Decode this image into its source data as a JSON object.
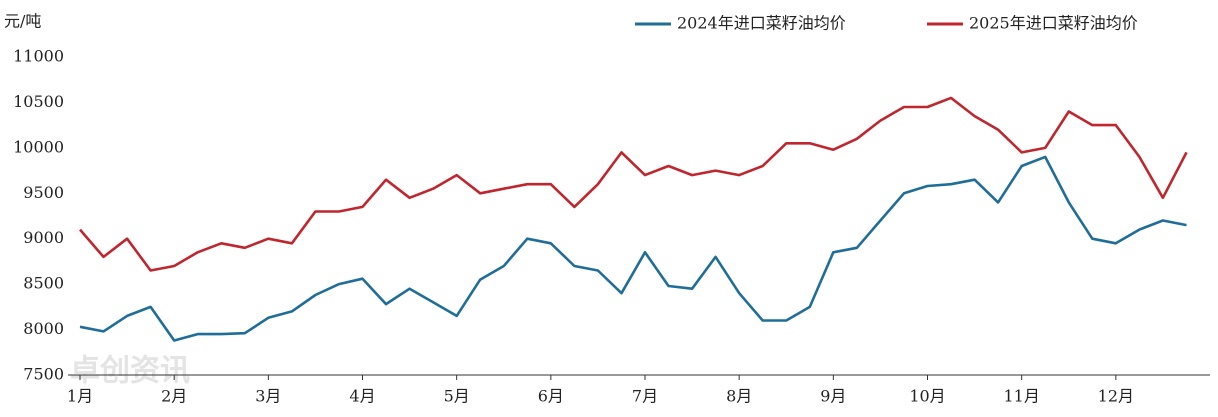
{
  "chart_data": {
    "type": "line",
    "y_label": "元/吨",
    "watermark": "卓创资讯",
    "categories": [
      "1月",
      null,
      null,
      null,
      "2月",
      null,
      null,
      null,
      "3月",
      null,
      null,
      null,
      "4月",
      null,
      null,
      null,
      "5月",
      null,
      null,
      null,
      "6月",
      null,
      null,
      null,
      "7月",
      null,
      null,
      null,
      "8月",
      null,
      null,
      null,
      "9月",
      null,
      null,
      null,
      "10月",
      null,
      null,
      null,
      "11月",
      null,
      null,
      null,
      "12月",
      null,
      null,
      null
    ],
    "series": [
      {
        "name": "2024年进口菜籽油均价",
        "color": "#1f6e9a",
        "values": [
          8030,
          7980,
          8150,
          8250,
          7880,
          7950,
          7950,
          7960,
          8130,
          8200,
          8380,
          8500,
          8560,
          8280,
          8450,
          8300,
          8150,
          8550,
          8700,
          9000,
          8950,
          8700,
          8650,
          8400,
          8850,
          8480,
          8450,
          8800,
          8400,
          8100,
          8100,
          8250,
          8850,
          8900,
          9200,
          9500,
          9580,
          9600,
          9650,
          9400,
          9800,
          9900,
          9400,
          9000,
          8950,
          9100,
          9200,
          9150
        ]
      },
      {
        "name": "2025年进口菜籽油均价",
        "color": "#c0262d",
        "values": [
          9100,
          8800,
          9000,
          8650,
          8700,
          8850,
          8950,
          8900,
          9000,
          8950,
          9300,
          9300,
          9350,
          9650,
          9450,
          9550,
          9700,
          9500,
          9550,
          9600,
          9600,
          9350,
          9600,
          9950,
          9700,
          9800,
          9700,
          9750,
          9700,
          9800,
          10050,
          10050,
          9980,
          10100,
          10300,
          10450,
          10450,
          10550,
          10350,
          10200,
          9950,
          10000,
          10400,
          10250,
          10250,
          9900,
          9450,
          9950
        ]
      }
    ],
    "ylim": [
      7500,
      11000
    ],
    "yticks": [
      7500,
      8000,
      8500,
      9000,
      9500,
      10000,
      10500,
      11000
    ],
    "grid": false,
    "legend": "top-right"
  }
}
